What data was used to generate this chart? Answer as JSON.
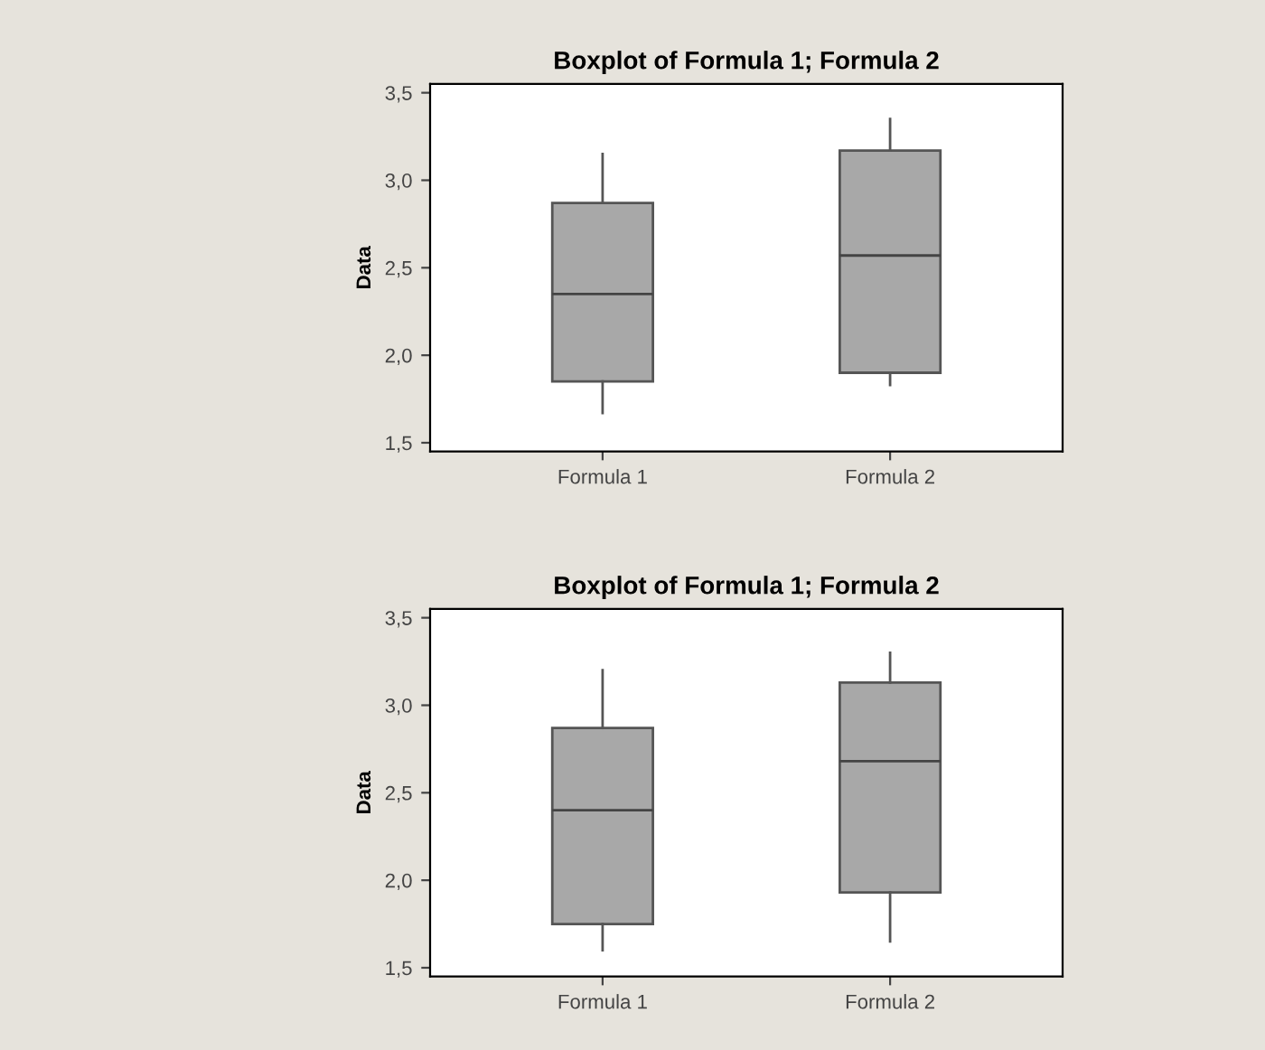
{
  "chart_data": [
    {
      "type": "box",
      "title": "Boxplot of Formula 1; Formula 2",
      "ylabel": "Data",
      "categories": [
        "Formula 1",
        "Formula 2"
      ],
      "color": "#a8a8a8",
      "boxes": [
        {
          "low": 1.67,
          "q1": 1.85,
          "median": 2.35,
          "q3": 2.87,
          "high": 3.15
        },
        {
          "low": 1.83,
          "q1": 1.9,
          "median": 2.57,
          "q3": 3.17,
          "high": 3.35
        }
      ],
      "ylim": [
        1.45,
        3.55
      ],
      "yticks": [
        {
          "value": 1.5,
          "label": "1,5"
        },
        {
          "value": 2.0,
          "label": "2,0"
        },
        {
          "value": 2.5,
          "label": "2,5"
        },
        {
          "value": 3.0,
          "label": "3,0"
        },
        {
          "value": 3.5,
          "label": "3,5"
        }
      ],
      "grid": false
    },
    {
      "type": "box",
      "title": "Boxplot of Formula 1; Formula 2",
      "ylabel": "Data",
      "categories": [
        "Formula 1",
        "Formula 2"
      ],
      "color": "#a8a8a8",
      "boxes": [
        {
          "low": 1.6,
          "q1": 1.75,
          "median": 2.4,
          "q3": 2.87,
          "high": 3.2
        },
        {
          "low": 1.65,
          "q1": 1.93,
          "median": 2.68,
          "q3": 3.13,
          "high": 3.3
        }
      ],
      "ylim": [
        1.45,
        3.55
      ],
      "yticks": [
        {
          "value": 1.5,
          "label": "1,5"
        },
        {
          "value": 2.0,
          "label": "2,0"
        },
        {
          "value": 2.5,
          "label": "2,5"
        },
        {
          "value": 3.0,
          "label": "3,0"
        },
        {
          "value": 3.5,
          "label": "3,5"
        }
      ],
      "grid": false
    }
  ]
}
